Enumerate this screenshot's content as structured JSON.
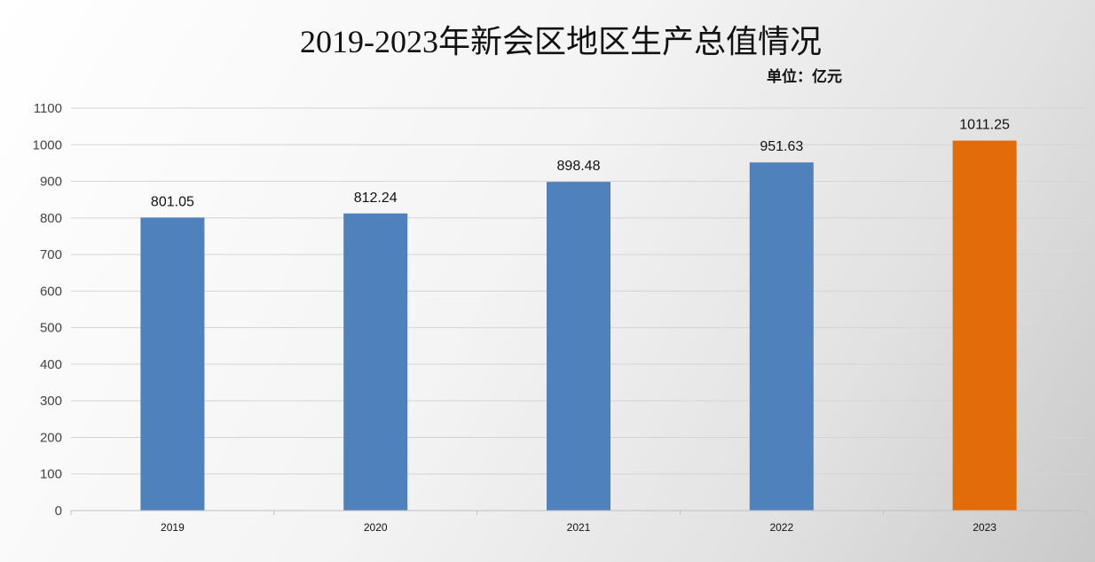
{
  "chart_data": {
    "type": "bar",
    "title": "2019-2023年新会区地区生产总值情况",
    "unit_label": "单位：亿元",
    "categories": [
      "2019",
      "2020",
      "2021",
      "2022",
      "2023"
    ],
    "values": [
      801.05,
      812.24,
      898.48,
      951.63,
      1011.25
    ],
    "value_labels": [
      "801.05",
      "812.24",
      "898.48",
      "951.63",
      "1011.25"
    ],
    "bar_colors": [
      "#4f81bd",
      "#4f81bd",
      "#4f81bd",
      "#4f81bd",
      "#e36c0a"
    ],
    "ylim": [
      0,
      1100
    ],
    "yticks": [
      0,
      100,
      200,
      300,
      400,
      500,
      600,
      700,
      800,
      900,
      1000,
      1100
    ],
    "grid": true,
    "legend": "none",
    "xlabel": "",
    "ylabel": ""
  }
}
